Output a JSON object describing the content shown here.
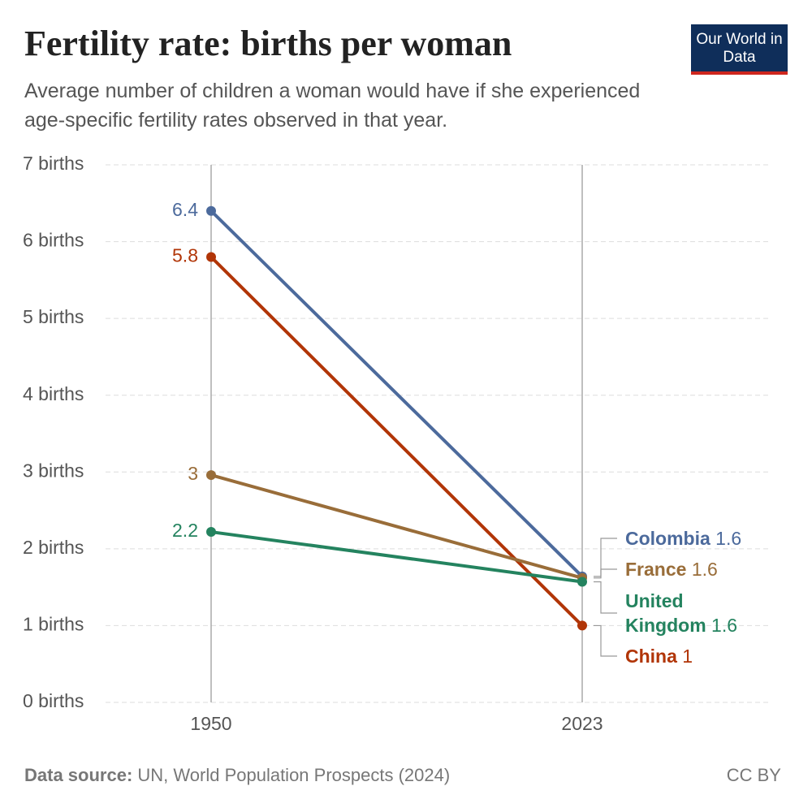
{
  "header": {
    "title": "Fertility rate: births per woman",
    "subtitle": "Average number of children a woman would have if she experienced age-specific fertility rates observed in that year.",
    "logo": "Our World in Data"
  },
  "chart_data": {
    "type": "line",
    "x": [
      1950,
      2023
    ],
    "xlim": [
      1950,
      2023
    ],
    "xticks": [
      1950,
      2023
    ],
    "ylim": [
      0,
      7
    ],
    "yticks": [
      {
        "value": 0,
        "label": "0 births"
      },
      {
        "value": 1,
        "label": "1 births"
      },
      {
        "value": 2,
        "label": "2 births"
      },
      {
        "value": 3,
        "label": "3 births"
      },
      {
        "value": 4,
        "label": "4 births"
      },
      {
        "value": 5,
        "label": "5 births"
      },
      {
        "value": 6,
        "label": "6 births"
      },
      {
        "value": 7,
        "label": "7 births"
      }
    ],
    "grid": true,
    "series": [
      {
        "name": "Colombia",
        "color": "#4c6a9c",
        "values": [
          6.4,
          1.64
        ],
        "value_labels": [
          "6.4",
          "1.6"
        ]
      },
      {
        "name": "China",
        "color": "#b13507",
        "values": [
          5.8,
          1.0
        ],
        "value_labels": [
          "5.8",
          "1"
        ]
      },
      {
        "name": "France",
        "color": "#996d39",
        "values": [
          2.96,
          1.62
        ],
        "value_labels": [
          "3",
          "1.6"
        ]
      },
      {
        "name": "United Kingdom",
        "color": "#24835f",
        "values": [
          2.22,
          1.57
        ],
        "value_labels": [
          "2.2",
          "1.6"
        ]
      }
    ]
  },
  "footer": {
    "source_label": "Data source:",
    "source": "UN, World Population Prospects (2024)",
    "license": "CC BY"
  }
}
